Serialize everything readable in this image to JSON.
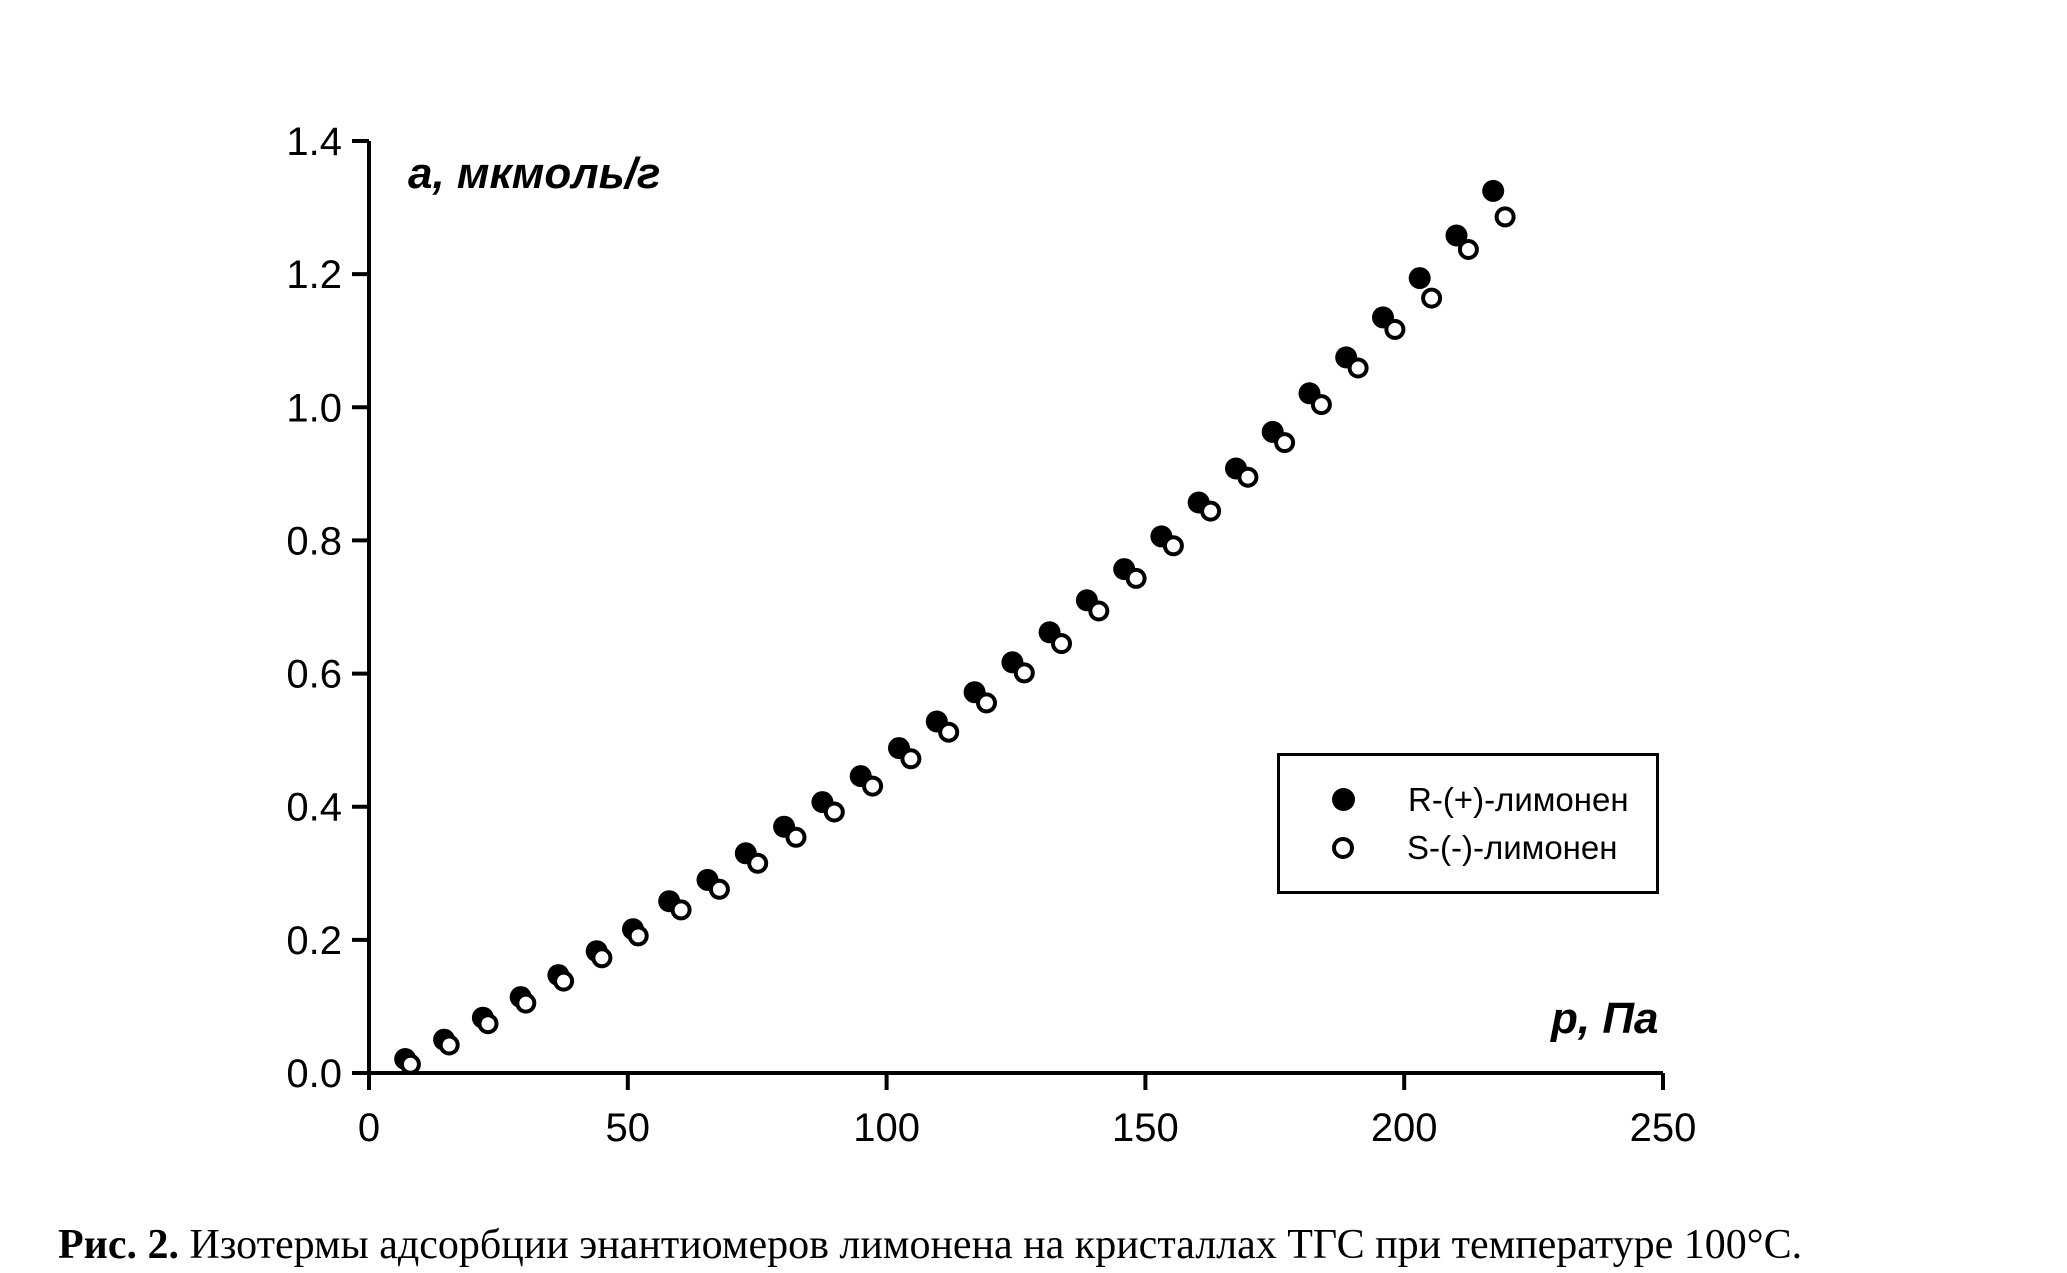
{
  "figure": {
    "caption_prefix": "Рис. 2.",
    "caption_text": " Изотермы адсорбции энантиомеров лимонена на кристаллах ТГС при температуре 100°С."
  },
  "colors": {
    "foreground": "#000000",
    "background": "#ffffff"
  },
  "chart_data": {
    "type": "scatter",
    "title": "",
    "xlabel": "р, Па",
    "ylabel": "а, мкмоль/г",
    "xlim": [
      0,
      250
    ],
    "ylim": [
      0,
      1.4
    ],
    "x_ticks": [
      "0",
      "50",
      "100",
      "150",
      "200",
      "250"
    ],
    "y_ticks": [
      "0.0",
      "0.2",
      "0.4",
      "0.6",
      "0.8",
      "1.0",
      "1.2",
      "1.4"
    ],
    "grid": false,
    "legend_position": "right-middle",
    "series": [
      {
        "name": "R-(+)-лимонен",
        "marker": "filled-circle",
        "color": "#000000",
        "points": [
          [
            7.0,
            0.021
          ],
          [
            14.5,
            0.05
          ],
          [
            22.0,
            0.083
          ],
          [
            29.3,
            0.114
          ],
          [
            36.6,
            0.147
          ],
          [
            44.0,
            0.183
          ],
          [
            51.0,
            0.216
          ],
          [
            58.0,
            0.258
          ],
          [
            65.4,
            0.29
          ],
          [
            72.8,
            0.33
          ],
          [
            80.2,
            0.37
          ],
          [
            87.6,
            0.407
          ],
          [
            95.0,
            0.446
          ],
          [
            102.4,
            0.488
          ],
          [
            109.7,
            0.528
          ],
          [
            117.0,
            0.572
          ],
          [
            124.3,
            0.617
          ],
          [
            131.5,
            0.662
          ],
          [
            138.7,
            0.71
          ],
          [
            145.9,
            0.757
          ],
          [
            153.1,
            0.806
          ],
          [
            160.3,
            0.857
          ],
          [
            167.5,
            0.908
          ],
          [
            174.6,
            0.963
          ],
          [
            181.7,
            1.021
          ],
          [
            188.8,
            1.075
          ],
          [
            195.9,
            1.135
          ],
          [
            203.0,
            1.194
          ],
          [
            210.1,
            1.258
          ],
          [
            217.2,
            1.325
          ]
        ]
      },
      {
        "name": "S-(-)-лимонен",
        "marker": "open-circle",
        "color": "#000000",
        "points": [
          [
            8.0,
            0.013
          ],
          [
            15.5,
            0.042
          ],
          [
            23.0,
            0.074
          ],
          [
            30.3,
            0.105
          ],
          [
            37.6,
            0.138
          ],
          [
            45.0,
            0.173
          ],
          [
            52.0,
            0.206
          ],
          [
            60.3,
            0.245
          ],
          [
            67.7,
            0.276
          ],
          [
            75.1,
            0.315
          ],
          [
            82.5,
            0.354
          ],
          [
            89.9,
            0.392
          ],
          [
            97.3,
            0.431
          ],
          [
            104.7,
            0.472
          ],
          [
            112.0,
            0.512
          ],
          [
            119.3,
            0.556
          ],
          [
            126.6,
            0.601
          ],
          [
            133.8,
            0.645
          ],
          [
            141.0,
            0.694
          ],
          [
            148.2,
            0.743
          ],
          [
            155.4,
            0.792
          ],
          [
            162.6,
            0.844
          ],
          [
            169.8,
            0.895
          ],
          [
            176.9,
            0.947
          ],
          [
            184.0,
            1.004
          ],
          [
            191.1,
            1.059
          ],
          [
            198.2,
            1.117
          ],
          [
            205.3,
            1.164
          ],
          [
            212.4,
            1.237
          ],
          [
            219.5,
            1.286
          ]
        ]
      }
    ]
  }
}
